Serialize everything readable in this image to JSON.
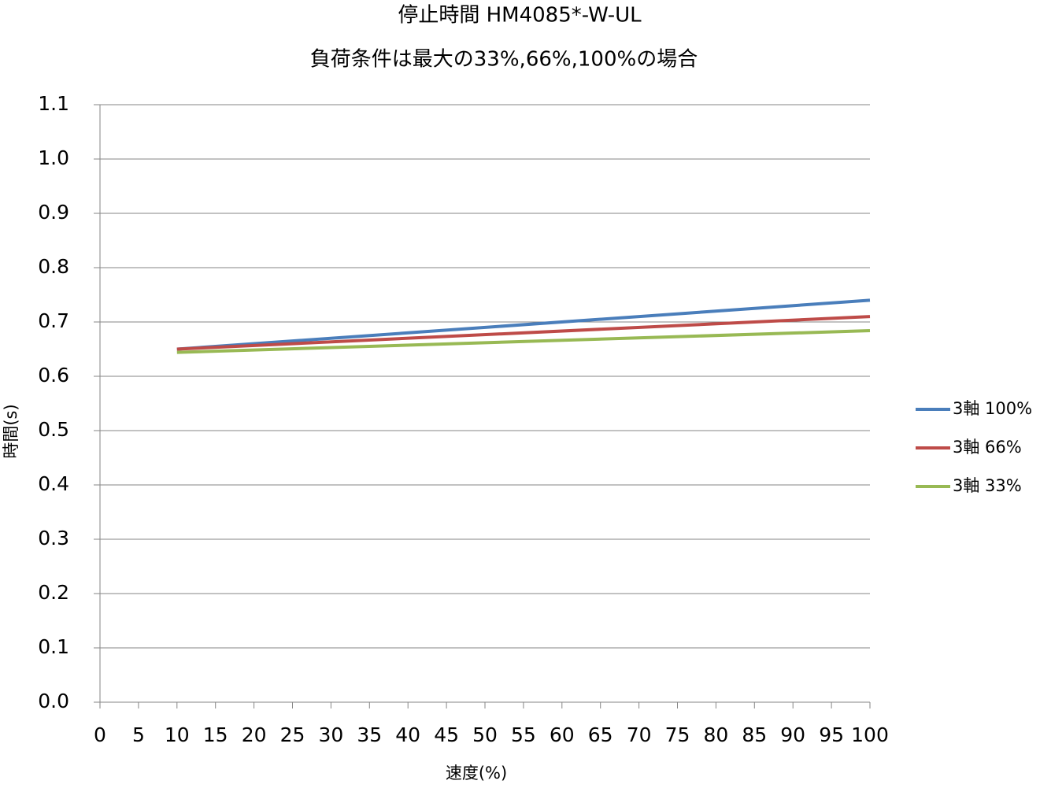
{
  "chart_data": {
    "type": "line",
    "title": "停止時間 HM4085*-W-UL",
    "subtitle": "負荷条件は最大の33%,66%,100%の場合",
    "x_label": "速度(%)",
    "y_label": "時間(s)",
    "x": [
      10,
      100
    ],
    "series": [
      {
        "name": "3軸 100%",
        "color": "#4a7ebb",
        "values": [
          0.65,
          0.74
        ]
      },
      {
        "name": "3軸 66%",
        "color": "#be4b48",
        "values": [
          0.65,
          0.71
        ]
      },
      {
        "name": "3軸 33%",
        "color": "#98b954",
        "values": [
          0.644,
          0.684
        ]
      }
    ],
    "xlim": [
      0,
      100
    ],
    "xticks": [
      0,
      5,
      10,
      15,
      20,
      25,
      30,
      35,
      40,
      45,
      50,
      55,
      60,
      65,
      70,
      75,
      80,
      85,
      90,
      95,
      100
    ],
    "ylim": [
      0,
      1.1
    ],
    "yticks": [
      {
        "value": 0,
        "label": "0.0"
      },
      0.1,
      0.2,
      0.3,
      0.4,
      0.5,
      0.6,
      0.7,
      0.8,
      0.9,
      {
        "value": 1,
        "label": "1.0"
      },
      1.1
    ],
    "grid": true,
    "legend": "right"
  }
}
